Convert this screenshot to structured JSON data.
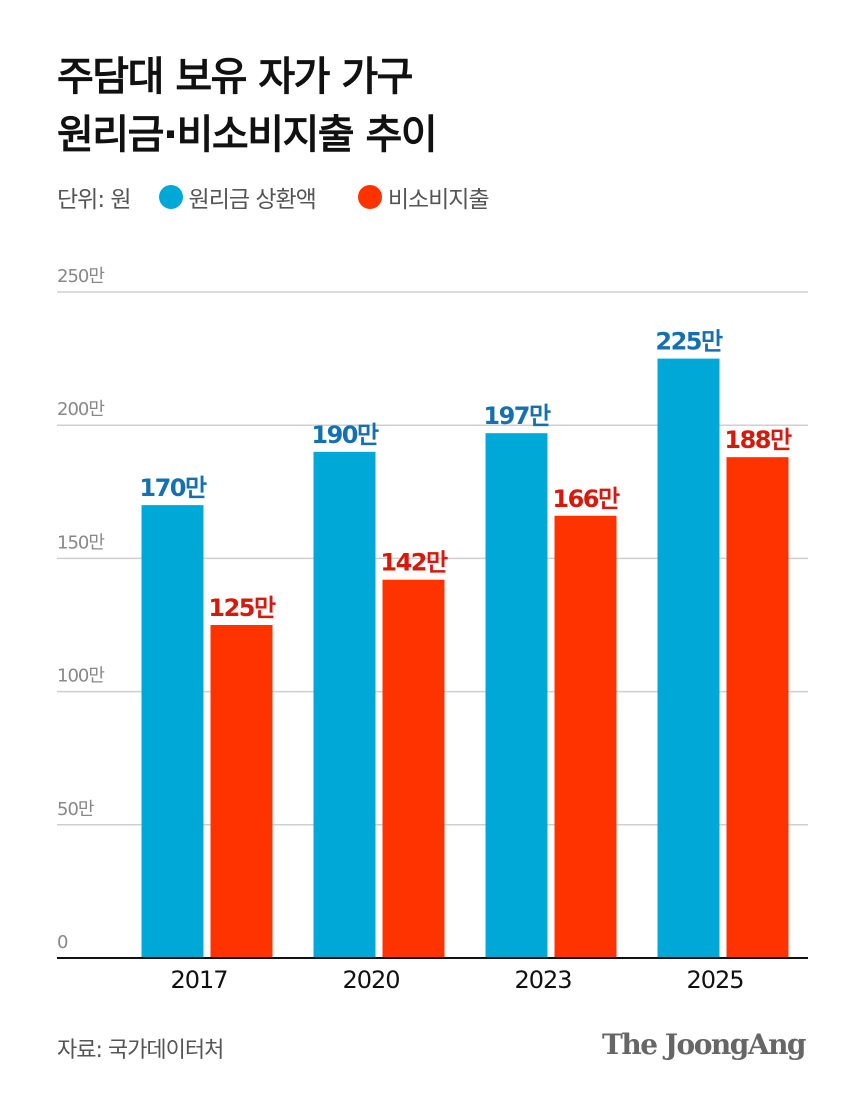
{
  "title_lines": [
    "주담대 보유 자가 가구",
    "원리금·비소비지출 추이"
  ],
  "unit_label": "단위: 원",
  "source": "자료: 국가데이터처",
  "logo": "The JoongAng",
  "colors": {
    "principal": "#00a8d8",
    "principal_label": "#1670b0",
    "nonconsumption": "#ff3300",
    "nonconsumption_label": "#d41a0c"
  },
  "chart_data": {
    "type": "bar",
    "categories": [
      "2017",
      "2020",
      "2023",
      "2025"
    ],
    "series": [
      {
        "name": "원리금 상환액",
        "values": [
          170,
          190,
          197,
          225
        ],
        "labels": [
          "170만",
          "190만",
          "197만",
          "225만"
        ]
      },
      {
        "name": "비소비지출",
        "values": [
          125,
          142,
          166,
          188
        ],
        "labels": [
          "125만",
          "142만",
          "166만",
          "188만"
        ]
      }
    ],
    "yticks": [
      0,
      50,
      100,
      150,
      200,
      250
    ],
    "ytick_labels": [
      "0",
      "50만",
      "100만",
      "150만",
      "200만",
      "250만"
    ],
    "ylim": [
      0,
      250
    ],
    "unit": "만원",
    "grid": true,
    "legend": "top-left"
  }
}
